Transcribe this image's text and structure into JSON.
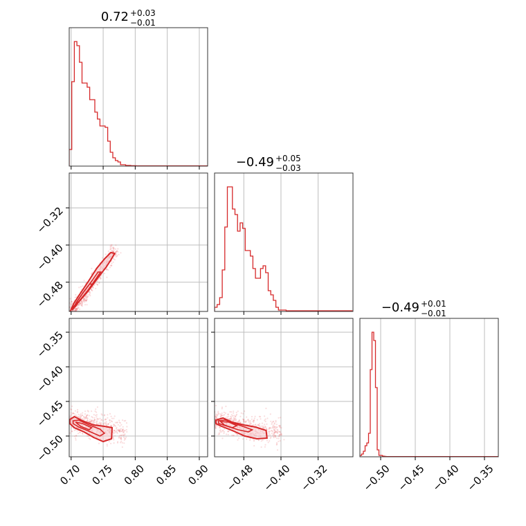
{
  "chart_data": {
    "type": "corner",
    "color": "#d62728",
    "grid": true,
    "parameters": [
      {
        "title_main": "0.72",
        "title_plus": "+0.03",
        "title_minus": "−0.01",
        "range": [
          0.697,
          0.913
        ],
        "ticks": [
          0.7,
          0.75,
          0.8,
          0.85,
          0.9
        ],
        "tick_labels": [
          "0.70",
          "0.75",
          "0.80",
          "0.85",
          "0.90"
        ],
        "hist_edges_start": 0.697,
        "hist_bin_width": 0.004,
        "hist_counts": [
          0.12,
          0.61,
          0.9,
          0.87,
          0.75,
          0.6,
          0.6,
          0.57,
          0.48,
          0.48,
          0.39,
          0.34,
          0.29,
          0.29,
          0.28,
          0.18,
          0.1,
          0.06,
          0.04,
          0.03,
          0.01,
          0.01,
          0.005,
          0.005,
          0.003,
          0.003,
          0.002,
          0.002,
          0.002,
          0.002,
          0.002,
          0.002,
          0.002,
          0.002,
          0.002,
          0.002,
          0.002,
          0.002,
          0.002,
          0.002,
          0.002,
          0.002,
          0.002,
          0.002,
          0.002,
          0.002,
          0.002,
          0.002,
          0.002,
          0.002,
          0.002,
          0.002,
          0.002,
          0.002
        ]
      },
      {
        "title_main": "−0.49",
        "title_plus": "+0.05",
        "title_minus": "−0.03",
        "range": [
          -0.543,
          -0.245
        ],
        "ticks": [
          -0.48,
          -0.4,
          -0.32
        ],
        "tick_labels": [
          "−0.48",
          "−0.40",
          "−0.32"
        ],
        "y_ticks": [
          -0.32,
          -0.4,
          -0.48
        ],
        "y_tick_labels": [
          "−0.32",
          "−0.40",
          "−0.48"
        ],
        "hist_edges_start": -0.543,
        "hist_bin_width": 0.0055,
        "hist_counts": [
          0.03,
          0.05,
          0.1,
          0.3,
          0.61,
          0.9,
          0.9,
          0.74,
          0.7,
          0.58,
          0.64,
          0.6,
          0.44,
          0.44,
          0.4,
          0.31,
          0.24,
          0.24,
          0.31,
          0.33,
          0.28,
          0.15,
          0.12,
          0.08,
          0.03,
          0.01,
          0.01,
          0.01,
          0.005,
          0.005,
          0.005,
          0.005,
          0.005,
          0.005,
          0.005,
          0.005,
          0.005,
          0.005,
          0.005,
          0.005,
          0.005,
          0.005,
          0.005,
          0.005,
          0.005,
          0.005,
          0.005,
          0.005,
          0.005,
          0.005,
          0.005,
          0.005,
          0.005,
          0.005
        ]
      },
      {
        "title_main": "−0.49",
        "title_plus": "+0.01",
        "title_minus": "−0.01",
        "range": [
          -0.53,
          -0.33
        ],
        "ticks": [
          -0.5,
          -0.45,
          -0.4,
          -0.35
        ],
        "tick_labels": [
          "−0.50",
          "−0.45",
          "−0.40",
          "−0.35"
        ],
        "y_ticks": [
          -0.35,
          -0.4,
          -0.45,
          -0.5
        ],
        "y_tick_labels": [
          "−0.35",
          "−0.40",
          "−0.45",
          "−0.50"
        ],
        "hist_edges_start": -0.53,
        "hist_bin_width": 0.0025,
        "hist_counts": [
          0.01,
          0.02,
          0.04,
          0.08,
          0.1,
          0.17,
          0.63,
          0.9,
          0.84,
          0.5,
          0.05,
          0.01,
          0.01,
          0.005,
          0.003,
          0.002,
          0.002,
          0.002,
          0.002,
          0.002,
          0.002,
          0.002,
          0.002,
          0.002,
          0.002,
          0.002,
          0.002,
          0.002,
          0.002,
          0.002,
          0.002,
          0.002,
          0.002,
          0.002,
          0.002,
          0.002,
          0.002,
          0.002,
          0.002,
          0.002,
          0.002,
          0.002,
          0.002,
          0.002,
          0.002,
          0.002,
          0.002,
          0.002,
          0.002,
          0.002,
          0.002,
          0.002,
          0.002,
          0.002,
          0.002,
          0.002,
          0.002,
          0.002,
          0.002,
          0.002,
          0.002,
          0.002,
          0.002,
          0.002,
          0.002,
          0.002,
          0.002,
          0.002,
          0.002,
          0.002,
          0.002,
          0.002,
          0.002,
          0.002,
          0.002,
          0.002,
          0.002,
          0.002,
          0.002,
          0.002
        ]
      }
    ],
    "joint": [
      {
        "x_param": 0,
        "y_param": 1,
        "samples_center": [
          0.722,
          -0.49
        ],
        "trend_points": [
          [
            0.7,
            -0.545
          ],
          [
            0.712,
            -0.525
          ],
          [
            0.722,
            -0.505
          ],
          [
            0.735,
            -0.478
          ],
          [
            0.748,
            -0.452
          ],
          [
            0.76,
            -0.428
          ],
          [
            0.77,
            -0.41
          ]
        ],
        "contours": [
          [
            [
              0.698,
              -0.548
            ],
            [
              0.7,
              -0.538
            ],
            [
              0.712,
              -0.522
            ],
            [
              0.726,
              -0.5
            ],
            [
              0.742,
              -0.47
            ],
            [
              0.755,
              -0.447
            ],
            [
              0.762,
              -0.432
            ],
            [
              0.768,
              -0.418
            ],
            [
              0.762,
              -0.416
            ],
            [
              0.752,
              -0.43
            ],
            [
              0.74,
              -0.45
            ],
            [
              0.728,
              -0.476
            ],
            [
              0.714,
              -0.505
            ],
            [
              0.704,
              -0.526
            ],
            [
              0.699,
              -0.542
            ]
          ],
          [
            [
              0.702,
              -0.54
            ],
            [
              0.712,
              -0.522
            ],
            [
              0.726,
              -0.498
            ],
            [
              0.738,
              -0.474
            ],
            [
              0.746,
              -0.458
            ],
            [
              0.742,
              -0.458
            ],
            [
              0.732,
              -0.478
            ],
            [
              0.72,
              -0.5
            ],
            [
              0.708,
              -0.524
            ],
            [
              0.703,
              -0.536
            ]
          ],
          [
            [
              0.706,
              -0.534
            ],
            [
              0.714,
              -0.518
            ],
            [
              0.726,
              -0.498
            ],
            [
              0.733,
              -0.484
            ],
            [
              0.729,
              -0.484
            ],
            [
              0.72,
              -0.5
            ],
            [
              0.71,
              -0.52
            ]
          ]
        ]
      },
      {
        "x_param": 0,
        "y_param": 2,
        "samples_center": [
          0.725,
          -0.49
        ],
        "contours": [
          [
            [
              0.698,
              -0.476
            ],
            [
              0.705,
              -0.472
            ],
            [
              0.718,
              -0.478
            ],
            [
              0.735,
              -0.484
            ],
            [
              0.752,
              -0.486
            ],
            [
              0.764,
              -0.488
            ],
            [
              0.763,
              -0.504
            ],
            [
              0.75,
              -0.508
            ],
            [
              0.735,
              -0.502
            ],
            [
              0.72,
              -0.494
            ],
            [
              0.705,
              -0.488
            ],
            [
              0.698,
              -0.482
            ]
          ],
          [
            [
              0.703,
              -0.478
            ],
            [
              0.712,
              -0.477
            ],
            [
              0.728,
              -0.484
            ],
            [
              0.745,
              -0.49
            ],
            [
              0.752,
              -0.496
            ],
            [
              0.745,
              -0.5
            ],
            [
              0.73,
              -0.494
            ],
            [
              0.712,
              -0.487
            ],
            [
              0.703,
              -0.482
            ]
          ],
          [
            [
              0.707,
              -0.48
            ],
            [
              0.718,
              -0.482
            ],
            [
              0.732,
              -0.488
            ],
            [
              0.728,
              -0.491
            ],
            [
              0.715,
              -0.486
            ]
          ]
        ]
      },
      {
        "x_param": 1,
        "y_param": 2,
        "samples_center": [
          -0.49,
          -0.49
        ],
        "contours": [
          [
            [
              -0.54,
              -0.477
            ],
            [
              -0.525,
              -0.474
            ],
            [
              -0.505,
              -0.48
            ],
            [
              -0.48,
              -0.484
            ],
            [
              -0.455,
              -0.487
            ],
            [
              -0.432,
              -0.492
            ],
            [
              -0.43,
              -0.503
            ],
            [
              -0.452,
              -0.504
            ],
            [
              -0.478,
              -0.5
            ],
            [
              -0.505,
              -0.492
            ],
            [
              -0.528,
              -0.486
            ],
            [
              -0.54,
              -0.482
            ]
          ],
          [
            [
              -0.535,
              -0.478
            ],
            [
              -0.52,
              -0.477
            ],
            [
              -0.5,
              -0.482
            ],
            [
              -0.478,
              -0.487
            ],
            [
              -0.462,
              -0.491
            ],
            [
              -0.47,
              -0.494
            ],
            [
              -0.492,
              -0.491
            ],
            [
              -0.515,
              -0.486
            ],
            [
              -0.534,
              -0.482
            ]
          ],
          [
            [
              -0.53,
              -0.479
            ],
            [
              -0.512,
              -0.48
            ],
            [
              -0.495,
              -0.485
            ],
            [
              -0.505,
              -0.488
            ],
            [
              -0.522,
              -0.484
            ]
          ]
        ]
      }
    ]
  }
}
